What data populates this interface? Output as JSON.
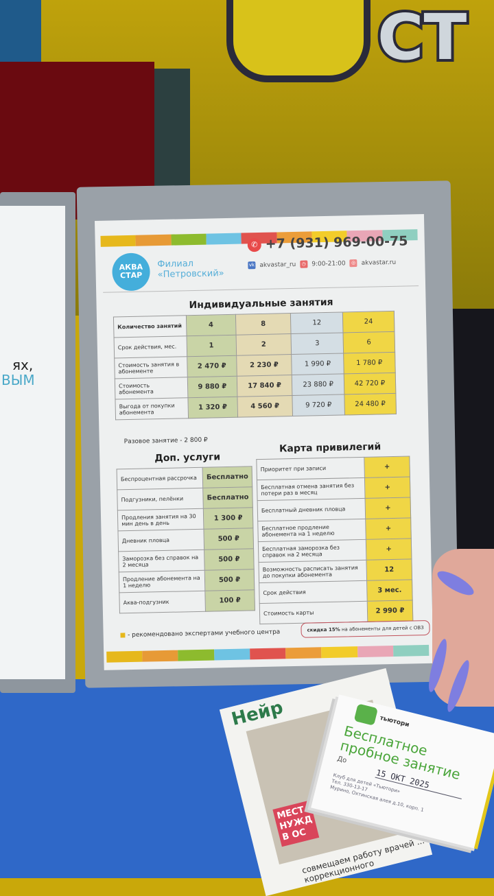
{
  "background": {
    "wall_sign": "СТ",
    "left_page_lines": [
      "ях,",
      "ВЫМ"
    ]
  },
  "sheet": {
    "stripe_colors": [
      "#e6b81c",
      "#e79a36",
      "#8dbb2e",
      "#6ec3e3",
      "#e0534e",
      "#eb9d3a",
      "#f2cc2a",
      "#e9a6b6",
      "#8fcfc0"
    ],
    "logo": {
      "text_line1": "АКВА",
      "text_line2": "СТАР",
      "color": "#44aedb"
    },
    "branch": {
      "line1": "Филиал",
      "line2": "«Петровский»"
    },
    "contacts": {
      "phone": "+7 (931) 969-00-75",
      "vk": "akvastar_ru",
      "hours": "9:00-21:00",
      "site": "akvastar.ru"
    },
    "individual": {
      "title": "Индивидуальные занятия",
      "rows": [
        {
          "label": "Количество занятий",
          "values": [
            "4",
            "8",
            "12",
            "24"
          ]
        },
        {
          "label": "Срок действия, мес.",
          "values": [
            "1",
            "2",
            "3",
            "6"
          ]
        },
        {
          "label": "Стоимость занятия в абонементе",
          "values": [
            "2 470 ₽",
            "2 230 ₽",
            "1 990 ₽",
            "1 780 ₽"
          ]
        },
        {
          "label": "Стоимость абонемента",
          "values": [
            "9 880 ₽",
            "17 840 ₽",
            "23 880 ₽",
            "42 720 ₽"
          ]
        },
        {
          "label": "Выгода от покупки абонемента",
          "values": [
            "1 320 ₽",
            "4 560 ₽",
            "9 720 ₽",
            "24 480 ₽"
          ]
        }
      ],
      "column_colors": [
        "#c9d4a6",
        "#e4dab4",
        "#d4dee4",
        "#f0d645"
      ]
    },
    "single_lesson": "Разовое занятие - 2 800 ₽",
    "extra": {
      "title": "Доп. услуги",
      "rows": [
        {
          "label": "Беспроцентная рассрочка",
          "value": "Бесплатно"
        },
        {
          "label": "Подгузники, пелёнки",
          "value": "Бесплатно"
        },
        {
          "label": "Продления занятия на 30 мин день в день",
          "value": "1 300 ₽"
        },
        {
          "label": "Дневник пловца",
          "value": "500 ₽"
        },
        {
          "label": "Заморозка без справок на 2 месяца",
          "value": "500 ₽"
        },
        {
          "label": "Продление абонемента на 1 неделю",
          "value": "500 ₽"
        },
        {
          "label": "Аква-подгузник",
          "value": "100 ₽"
        }
      ]
    },
    "privilege": {
      "title": "Карта привилегий",
      "rows": [
        {
          "label": "Приоритет при записи",
          "value": "+"
        },
        {
          "label": "Бесплатная отмена занятия без потери раз в месяц",
          "value": "+"
        },
        {
          "label": "Бесплатный дневник пловца",
          "value": "+"
        },
        {
          "label": "Бесплатное продление абонемента на 1 неделю",
          "value": "+"
        },
        {
          "label": "Бесплатная заморозка без справок на 2 месяца",
          "value": "+"
        },
        {
          "label": "Возможность расписать занятия до покупки абонемента",
          "value": "12"
        },
        {
          "label": "Срок действия",
          "value": "3 мес."
        },
        {
          "label": "Стоимость карты",
          "value": "2 990 ₽"
        }
      ]
    },
    "recommend_note": "- рекомендовано экспертами учебного центра",
    "discount_bold": "скидка 15%",
    "discount_rest": " на абонементы для детей с ОВЗ"
  },
  "flyers": {
    "neiro_title": "Нейр",
    "neiro_banner": [
      "МЕСТ",
      "НУЖД",
      "В ОС"
    ],
    "neiro_bottom": "совмещаем работу врачей ... коррекционного",
    "tutori_brand": "тьютори",
    "tutori_title_line1": "Бесплатное",
    "tutori_title_line2": "пробное занятие",
    "tutori_until_label": "До",
    "tutori_date": "15 ОКТ 2025",
    "tutori_club": "Клуб для детей «Тьютори»",
    "tutori_phone": "Тел. 330-13-17",
    "tutori_address": "Мурино, Охтинская алея д.10, корп. 1"
  }
}
